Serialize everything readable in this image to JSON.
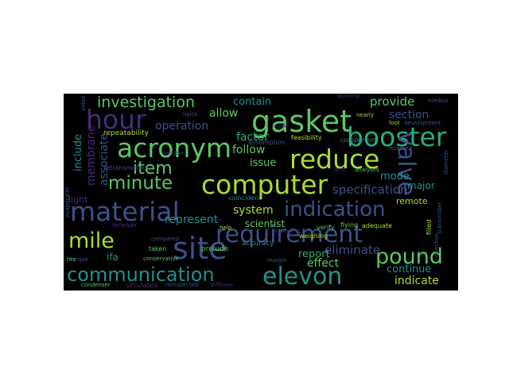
{
  "colors": {
    "background": "#000000",
    "page": "#ffffff",
    "palette": [
      "#3b518b",
      "#2c718e",
      "#21918c",
      "#27ad81",
      "#5cc863",
      "#aadc32",
      "#fde725",
      "#472c7a",
      "#31688e"
    ]
  },
  "words": [
    {
      "text": "requirement",
      "color": "#3b518b"
    },
    {
      "text": "material",
      "color": "#3b518b"
    },
    {
      "text": "computer",
      "color": "#aadc32"
    },
    {
      "text": "gasket",
      "color": "#5cc863"
    },
    {
      "text": "acronym",
      "color": "#5cc863"
    },
    {
      "text": "booster",
      "color": "#27ad81"
    },
    {
      "text": "reduce",
      "color": "#aadc32"
    },
    {
      "text": "site",
      "color": "#3b518b"
    },
    {
      "text": "hour",
      "color": "#472c7a"
    },
    {
      "text": "elevon",
      "color": "#21918c"
    },
    {
      "text": "indication",
      "color": "#3b518b"
    },
    {
      "text": "communication",
      "color": "#21918c"
    },
    {
      "text": "mile",
      "color": "#aadc32"
    },
    {
      "text": "pound",
      "color": "#5cc863"
    },
    {
      "text": "investigation",
      "color": "#5cc863"
    },
    {
      "text": "minute",
      "color": "#5cc863"
    },
    {
      "text": "valve",
      "color": "#3b518b"
    },
    {
      "text": "item",
      "color": "#5cc863"
    },
    {
      "text": "specification",
      "color": "#3b518b"
    },
    {
      "text": "operation",
      "color": "#3b518b"
    },
    {
      "text": "provide",
      "color": "#5cc863"
    },
    {
      "text": "section",
      "color": "#3b518b"
    },
    {
      "text": "eliminate",
      "color": "#3b518b"
    },
    {
      "text": "represent",
      "color": "#21918c"
    },
    {
      "text": "system",
      "color": "#aadc32"
    },
    {
      "text": "factor",
      "color": "#27ad81"
    },
    {
      "text": "contain",
      "color": "#21918c"
    },
    {
      "text": "allow",
      "color": "#5cc863"
    },
    {
      "text": "follow",
      "color": "#5cc863"
    },
    {
      "text": "issue",
      "color": "#5cc863"
    },
    {
      "text": "report",
      "color": "#27ad81"
    },
    {
      "text": "effect",
      "color": "#5cc863"
    },
    {
      "text": "continue",
      "color": "#21918c"
    },
    {
      "text": "indicate",
      "color": "#aadc32"
    },
    {
      "text": "include",
      "color": "#21918c"
    },
    {
      "text": "membrane",
      "color": "#472c7a"
    },
    {
      "text": "associate",
      "color": "#3b518b"
    },
    {
      "text": "mode",
      "color": "#21918c"
    },
    {
      "text": "major",
      "color": "#21918c"
    },
    {
      "text": "scientist",
      "color": "#5cc863"
    },
    {
      "text": "remote",
      "color": "#aadc32"
    },
    {
      "text": "light",
      "color": "#472c7a"
    },
    {
      "text": "ifa",
      "color": "#21918c"
    },
    {
      "text": "repeatability",
      "color": "#aadc32"
    },
    {
      "text": "inside",
      "color": "#472c7a"
    },
    {
      "text": "accuracy",
      "color": "#21918c"
    },
    {
      "text": "prelude",
      "color": "#5cc863"
    },
    {
      "text": "coincident",
      "color": "#21918c"
    },
    {
      "text": "assumption",
      "color": "#3b518b"
    },
    {
      "text": "feasibility",
      "color": "#aadc32"
    },
    {
      "text": "component",
      "color": "#21918c"
    },
    {
      "text": "weighing",
      "color": "#aadc32"
    },
    {
      "text": "drift",
      "color": "#472c7a"
    },
    {
      "text": "analyses",
      "color": "#5cc863"
    },
    {
      "text": "verify",
      "color": "#5cc863"
    },
    {
      "text": "flying",
      "color": "#5cc863"
    },
    {
      "text": "adequate",
      "color": "#aadc32"
    },
    {
      "text": "receiver",
      "color": "#472c7a"
    },
    {
      "text": "compared",
      "color": "#3b518b"
    },
    {
      "text": "taken",
      "color": "#5cc863"
    },
    {
      "text": "conservative",
      "color": "#5cc863"
    },
    {
      "text": "retransmitted",
      "color": "#3b518b"
    },
    {
      "text": "condenser",
      "color": "#5cc863"
    },
    {
      "text": "simulated",
      "color": "#472c7a"
    },
    {
      "text": "reinspected",
      "color": "#3b518b"
    },
    {
      "text": "stiffness",
      "color": "#472c7a"
    },
    {
      "text": "torque",
      "color": "#3b518b"
    },
    {
      "text": "hrs",
      "color": "#5cc863"
    },
    {
      "text": "received",
      "color": "#3b518b"
    },
    {
      "text": "nimbus",
      "color": "#3b518b"
    },
    {
      "text": "working",
      "color": "#472c7a"
    },
    {
      "text": "nearly",
      "color": "#aadc32"
    },
    {
      "text": "foot",
      "color": "#aadc32"
    },
    {
      "text": "development",
      "color": "#3b518b"
    },
    {
      "text": "transmitter",
      "color": "#3b518b"
    },
    {
      "text": "diameter",
      "color": "#3b518b"
    },
    {
      "text": "rejection",
      "color": "#3b518b"
    },
    {
      "text": "filled",
      "color": "#aadc32"
    },
    {
      "text": "margin",
      "color": "#3b518b"
    },
    {
      "text": "bounding",
      "color": "#472c7a"
    },
    {
      "text": "help",
      "color": "#aadc32"
    },
    {
      "text": "npics",
      "color": "#3b518b"
    },
    {
      "text": "video",
      "color": "#3b518b"
    },
    {
      "text": "evaporator",
      "color": "#3b518b"
    },
    {
      "text": "redone",
      "color": "#472c7a"
    },
    {
      "text": "bay",
      "color": "#472c7a"
    }
  ]
}
